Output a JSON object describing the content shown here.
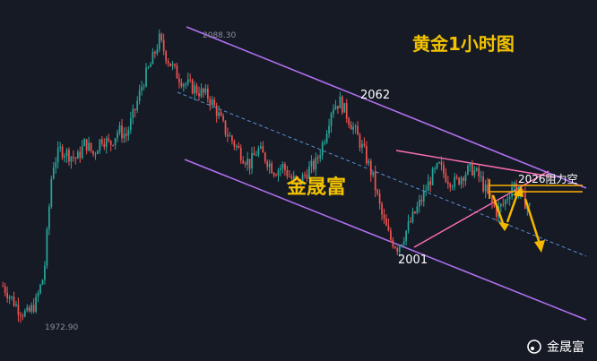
{
  "chart_data": {
    "type": "candlestick",
    "title": "黄金1小时图",
    "watermark": "金晟富",
    "brand": "金晟富",
    "ylim": [
      1960,
      2100
    ],
    "high_label": "2088.30",
    "low_label": "1972.90",
    "annotations": {
      "peak": "2062",
      "trough": "2001",
      "resistance": "2026阻力空"
    },
    "close_path": [
      1985,
      1980,
      1975,
      1973,
      1978,
      1990,
      2035,
      2042,
      2040,
      2038,
      2045,
      2040,
      2047,
      2044,
      2050,
      2048,
      2058,
      2070,
      2078,
      2088,
      2080,
      2074,
      2070,
      2068,
      2066,
      2064,
      2058,
      2050,
      2045,
      2040,
      2036,
      2042,
      2038,
      2033,
      2035,
      2030,
      2028,
      2033,
      2036,
      2046,
      2060,
      2062,
      2055,
      2048,
      2040,
      2030,
      2015,
      2005,
      2001,
      2008,
      2015,
      2022,
      2030,
      2035,
      2030,
      2028,
      2032,
      2034,
      2030,
      2022,
      2016,
      2020,
      2028,
      2022,
      2018
    ],
    "colors": {
      "up": "#26a69a",
      "down": "#ef5350",
      "channel": "#b070f0",
      "midline": "#5a8fd8",
      "triangle": "#ff6fb8",
      "arrow": "#f5b800",
      "resistance": "#ffb000"
    }
  }
}
